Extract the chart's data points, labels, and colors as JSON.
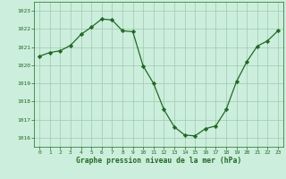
{
  "x": [
    0,
    1,
    2,
    3,
    4,
    5,
    6,
    7,
    8,
    9,
    10,
    11,
    12,
    13,
    14,
    15,
    16,
    17,
    18,
    19,
    20,
    21,
    22,
    23
  ],
  "y": [
    1020.5,
    1020.7,
    1020.8,
    1021.1,
    1021.7,
    1022.1,
    1022.55,
    1022.5,
    1021.9,
    1021.85,
    1019.95,
    1019.0,
    1017.55,
    1016.6,
    1016.15,
    1016.1,
    1016.5,
    1016.65,
    1017.55,
    1019.1,
    1020.2,
    1021.05,
    1021.35,
    1021.9
  ],
  "line_color": "#1f6b1f",
  "marker": "D",
  "marker_size": 2.2,
  "bg_color": "#c8eee0",
  "grid_color": "#a0c8b0",
  "xlabel": "Graphe pression niveau de la mer (hPa)",
  "xlabel_color": "#1f6b1f",
  "tick_color": "#1f6b1f",
  "ylim": [
    1015.5,
    1023.5
  ],
  "yticks": [
    1016,
    1017,
    1018,
    1019,
    1020,
    1021,
    1022,
    1023
  ],
  "xticks": [
    0,
    1,
    2,
    3,
    4,
    5,
    6,
    7,
    8,
    9,
    10,
    11,
    12,
    13,
    14,
    15,
    16,
    17,
    18,
    19,
    20,
    21,
    22,
    23
  ],
  "axis_bg": "#cceedd",
  "fig_bg": "#cceedd"
}
